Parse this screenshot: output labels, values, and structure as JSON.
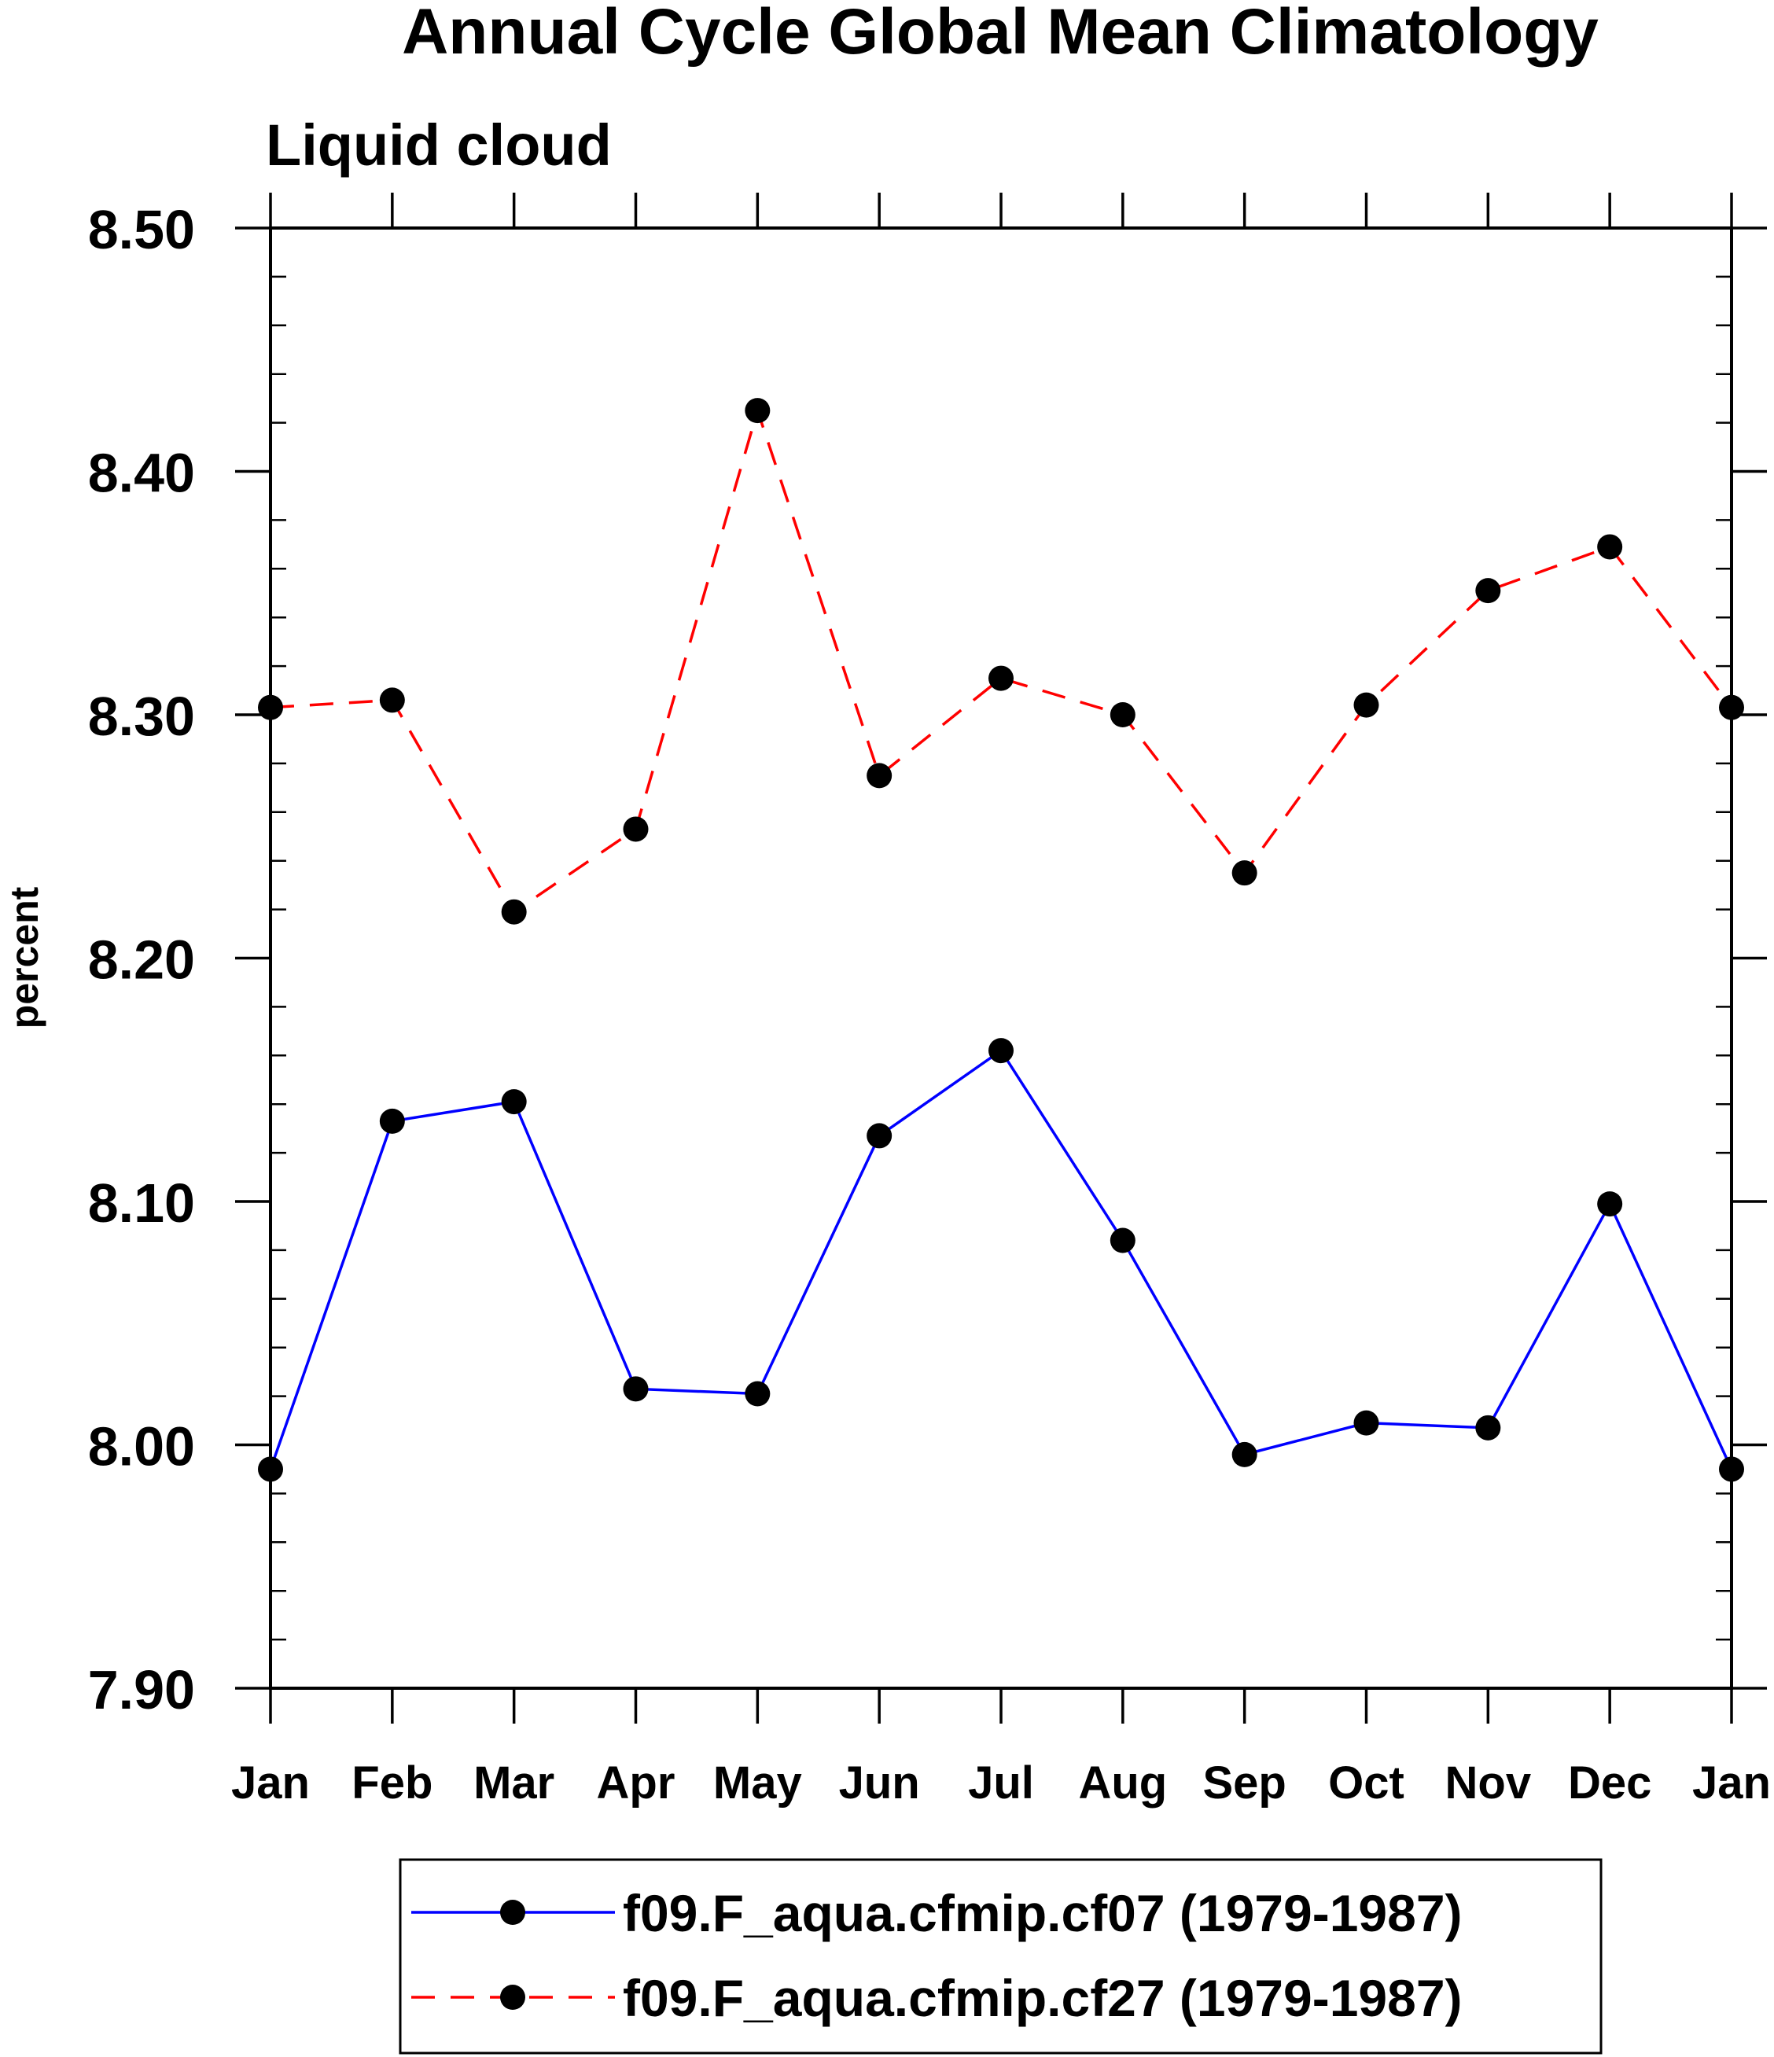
{
  "chart_data": {
    "type": "line",
    "title": "Annual Cycle Global Mean Climatology",
    "subtitle": "Liquid cloud",
    "ylabel": "percent",
    "xlabel": "",
    "categories": [
      "Jan",
      "Feb",
      "Mar",
      "Apr",
      "May",
      "Jun",
      "Jul",
      "Aug",
      "Sep",
      "Oct",
      "Nov",
      "Dec",
      "Jan"
    ],
    "ylim": [
      7.9,
      8.5
    ],
    "yticks": [
      "7.90",
      "8.00",
      "8.10",
      "8.20",
      "8.30",
      "8.40",
      "8.50"
    ],
    "grid": false,
    "legend_position": "bottom",
    "series": [
      {
        "name": "f09.F_aqua.cfmip.cf07 (1979-1987)",
        "color": "#0000ff",
        "dash": "solid",
        "marker": "filled-circle",
        "values": [
          7.99,
          8.133,
          8.141,
          8.023,
          8.021,
          8.127,
          8.162,
          8.084,
          7.996,
          8.009,
          8.007,
          8.099,
          7.99
        ]
      },
      {
        "name": "f09.F_aqua.cfmip.cf27 (1979-1987)",
        "color": "#ff0000",
        "dash": "dashed",
        "marker": "filled-circle",
        "values": [
          8.303,
          8.306,
          8.219,
          8.253,
          8.425,
          8.275,
          8.315,
          8.3,
          8.235,
          8.304,
          8.351,
          8.369,
          8.303
        ]
      }
    ]
  }
}
